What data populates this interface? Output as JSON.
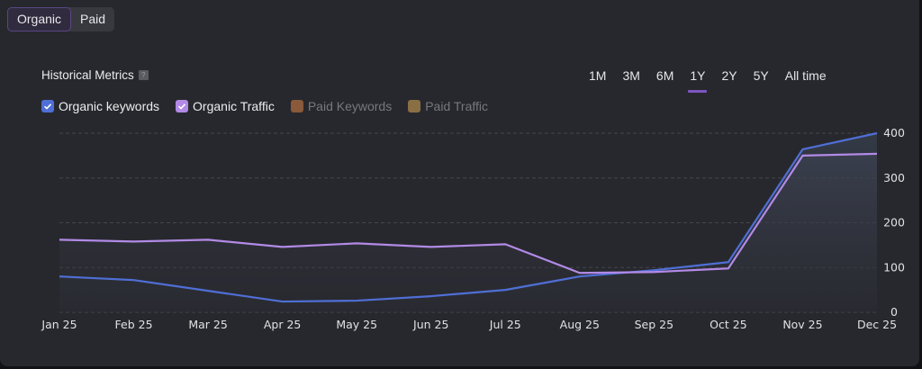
{
  "segmented": {
    "options": [
      {
        "label": "Organic",
        "active": true
      },
      {
        "label": "Paid",
        "active": false
      }
    ]
  },
  "header": {
    "title": "Historical Metrics",
    "help_icon": "question-mark-icon",
    "help_glyph": "?"
  },
  "time_ranges": [
    {
      "label": "1M",
      "active": false
    },
    {
      "label": "3M",
      "active": false
    },
    {
      "label": "6M",
      "active": false
    },
    {
      "label": "1Y",
      "active": true
    },
    {
      "label": "2Y",
      "active": false
    },
    {
      "label": "5Y",
      "active": false
    },
    {
      "label": "All time",
      "active": false
    }
  ],
  "legend": [
    {
      "label": "Organic keywords",
      "checked": true,
      "color": "#4f6fd6"
    },
    {
      "label": "Organic Traffic",
      "checked": true,
      "color": "#b28ae6"
    },
    {
      "label": "Paid Keywords",
      "checked": false,
      "color": "#8a5a3b"
    },
    {
      "label": "Paid Traffic",
      "checked": false,
      "color": "#8a6f45"
    }
  ],
  "chart_data": {
    "type": "line",
    "title": "Historical Metrics",
    "xlabel": "",
    "ylabel": "",
    "categories": [
      "Jan 25",
      "Feb 25",
      "Mar 25",
      "Apr 25",
      "May 25",
      "Jun 25",
      "Jul 25",
      "Aug 25",
      "Sep 25",
      "Oct 25",
      "Nov 25",
      "Dec 25"
    ],
    "series": [
      {
        "name": "Organic keywords",
        "color": "#4f6fd6",
        "values": [
          80,
          72,
          48,
          24,
          26,
          36,
          50,
          80,
          94,
          112,
          364,
          400
        ]
      },
      {
        "name": "Organic Traffic",
        "color": "#b28ae6",
        "values": [
          162,
          158,
          162,
          146,
          154,
          146,
          152,
          88,
          90,
          98,
          350,
          354
        ]
      }
    ],
    "ylim": [
      0,
      400
    ],
    "yticks": [
      0,
      100,
      200,
      300,
      400
    ],
    "y_axis_side": "right",
    "grid": true,
    "area_fill": true,
    "legend_position": "top-left"
  }
}
